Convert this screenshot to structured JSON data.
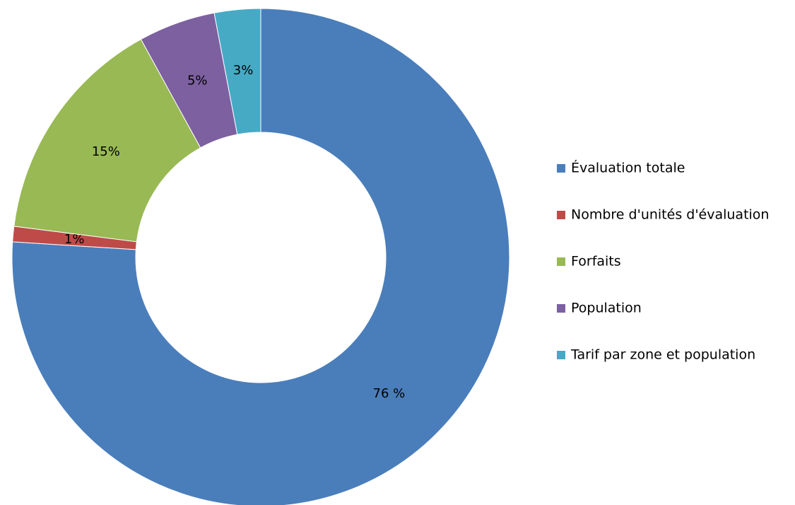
{
  "chart_data": {
    "type": "donut",
    "categories": [
      "Évaluation totale",
      "Nombre d'unités d'évaluation",
      "Forfaits",
      "Population",
      "Tarif par zone et population"
    ],
    "values": [
      76,
      1,
      15,
      5,
      3
    ],
    "value_labels": [
      "76 %",
      "1%",
      "15%",
      "5%",
      "3%"
    ],
    "colors": [
      "#4a7ebb",
      "#be4b48",
      "#98b954",
      "#7d60a0",
      "#46aac5"
    ],
    "legend": "right"
  }
}
